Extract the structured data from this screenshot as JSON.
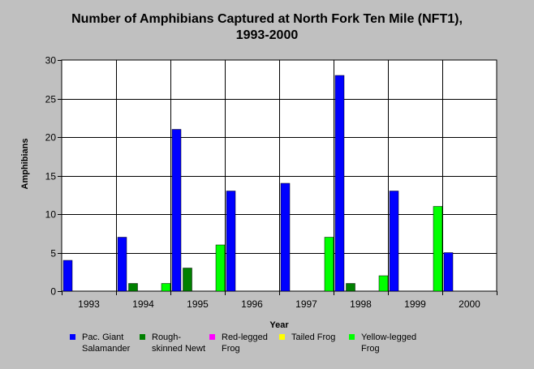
{
  "chart_data": {
    "type": "bar",
    "title_lines": [
      "Number of Amphibians Captured at North Fork Ten Mile (NFT1),",
      "1993-2000"
    ],
    "xlabel": "Year",
    "ylabel": "Amphibians",
    "ylim": [
      0,
      30
    ],
    "yticks": [
      0,
      5,
      10,
      15,
      20,
      25,
      30
    ],
    "grid": true,
    "legend_position": "bottom",
    "categories": [
      "1993",
      "1994",
      "1995",
      "1996",
      "1997",
      "1998",
      "1999",
      "2000"
    ],
    "series": [
      {
        "name": "Pac. Giant Salamander",
        "color": "#0000ff",
        "values": [
          4,
          7,
          21,
          13,
          14,
          28,
          13,
          5
        ]
      },
      {
        "name": "Rough-skinned Newt",
        "color": "#008000",
        "values": [
          0,
          1,
          3,
          0,
          0,
          1,
          0,
          0
        ]
      },
      {
        "name": "Red-legged Frog",
        "color": "#ff00ff",
        "values": [
          0,
          0,
          0,
          0,
          0,
          0,
          0,
          0
        ]
      },
      {
        "name": "Tailed Frog",
        "color": "#ffff00",
        "values": [
          0,
          0,
          0,
          0,
          0,
          0,
          0,
          0
        ]
      },
      {
        "name": "Yellow-legged Frog",
        "color": "#00ff00",
        "values": [
          0,
          1,
          6,
          0,
          7,
          2,
          11,
          0
        ]
      }
    ]
  }
}
